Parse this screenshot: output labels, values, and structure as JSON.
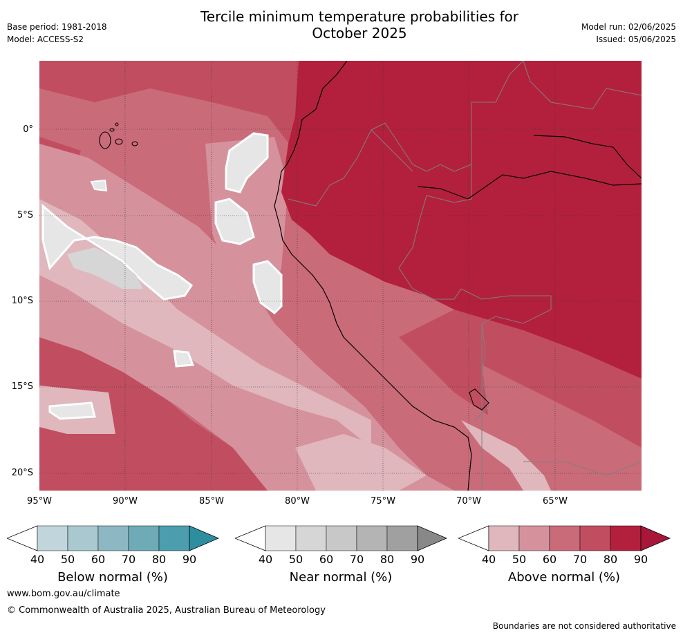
{
  "title_line1": "Tercile minimum temperature probabilities for",
  "title_line2": "October 2025",
  "meta": {
    "base_period": "Base period: 1981-2018",
    "model": "Model: ACCESS-S2",
    "model_run": "Model run: 02/06/2025",
    "issued": "Issued: 05/06/2025"
  },
  "map": {
    "lat_labels": [
      "0°",
      "5°S",
      "10°S",
      "15°S",
      "20°S"
    ],
    "lon_labels": [
      "95°W",
      "90°W",
      "85°W",
      "80°W",
      "75°W",
      "70°W",
      "65°W"
    ],
    "colors": {
      "above_40": "#dfb7bd",
      "above_50": "#d5929c",
      "above_60": "#ca6b7a",
      "above_70": "#c14e60",
      "above_80": "#b3203d",
      "above_90": "#a8163a",
      "near_40": "#e6e6e6",
      "near_50": "#d6d6d6",
      "near_60": "#c8c8c8",
      "near_70": "#b4b4b4",
      "near_80": "#a0a0a0",
      "near_90": "#888888",
      "below_40": "#c0d6dc",
      "below_50": "#a9c8cf",
      "below_60": "#8db8c3",
      "below_70": "#6eabb7",
      "below_80": "#4c9eae",
      "below_90": "#2d8ea0"
    }
  },
  "colorbars": [
    {
      "label": "Below normal (%)",
      "ticks": [
        "40",
        "50",
        "60",
        "70",
        "80",
        "90"
      ],
      "scheme": "below"
    },
    {
      "label": "Near normal (%)",
      "ticks": [
        "40",
        "50",
        "60",
        "70",
        "80",
        "90"
      ],
      "scheme": "near"
    },
    {
      "label": "Above normal (%)",
      "ticks": [
        "40",
        "50",
        "60",
        "70",
        "80",
        "90"
      ],
      "scheme": "above"
    }
  ],
  "footer": {
    "url": "www.bom.gov.au/climate",
    "copyright": "© Commonwealth of Australia 2025, Australian Bureau of Meteorology",
    "disclaimer": "Boundaries are not considered authoritative"
  }
}
